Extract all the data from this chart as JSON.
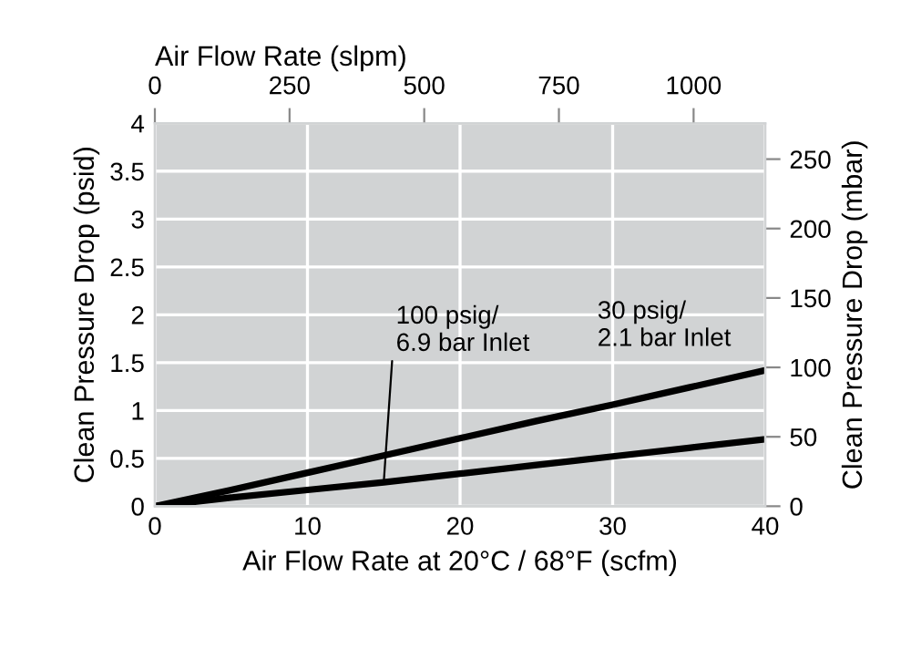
{
  "chart_data": {
    "type": "line",
    "xlabel": "Air Flow Rate at 20°C / 68°F (scfm)",
    "ylabel": "Clean Pressure Drop (psid)",
    "y2label": "Clean Pressure Drop (mbar)",
    "x2label": "Air Flow Rate (slpm)",
    "x": [
      0,
      5,
      10,
      15,
      20,
      25,
      30,
      35,
      40
    ],
    "series": [
      {
        "name": "100 psig/\n6.9 bar Inlet",
        "color": "#000000",
        "values": [
          0,
          0.09,
          0.17,
          0.25,
          0.34,
          0.43,
          0.52,
          0.61,
          0.7
        ]
      },
      {
        "name": "30 psig/\n2.1 bar Inlet",
        "color": "#000000",
        "values": [
          0,
          0.17,
          0.35,
          0.53,
          0.71,
          0.89,
          1.06,
          1.24,
          1.42
        ]
      }
    ],
    "xlim": [
      0,
      40
    ],
    "xticks": [
      0,
      10,
      20,
      30,
      40
    ],
    "ylim": [
      0,
      4
    ],
    "yticks": [
      0,
      0.5,
      1,
      1.5,
      2,
      2.5,
      3,
      3.5,
      4
    ],
    "x2lim": [
      0,
      1133
    ],
    "x2ticks": [
      0,
      250,
      500,
      750,
      1000
    ],
    "y2lim": [
      0,
      275.8
    ],
    "y2ticks": [
      0,
      50,
      100,
      150,
      200,
      250
    ],
    "grid": true,
    "marker": "none",
    "line_style": "solid",
    "legend": false
  }
}
